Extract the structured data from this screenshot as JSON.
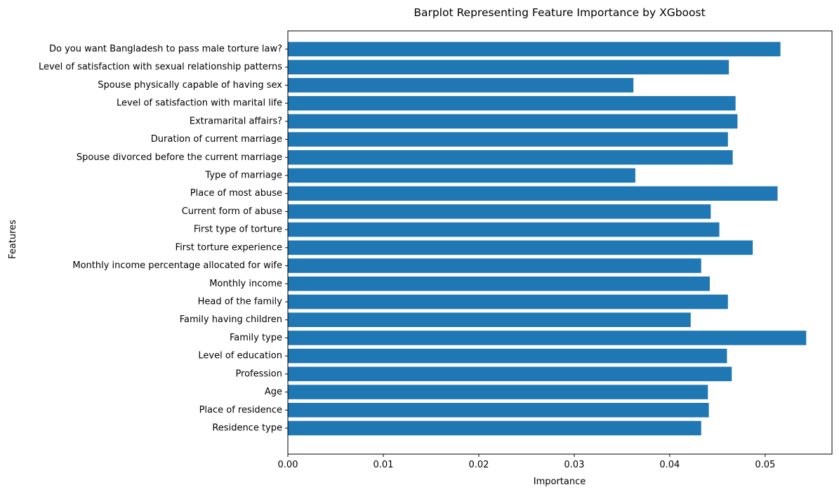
{
  "chart_data": {
    "type": "bar",
    "orientation": "horizontal",
    "title": "Barplot Representing Feature Importance by XGboost",
    "xlabel": "Importance",
    "ylabel": "Features",
    "xlim": [
      0,
      0.057
    ],
    "x_ticks": [
      "0.00",
      "0.01",
      "0.02",
      "0.03",
      "0.04",
      "0.05"
    ],
    "x_tick_values": [
      0,
      0.01,
      0.02,
      0.03,
      0.04,
      0.05
    ],
    "grid": false,
    "bar_color": "#1f77b4",
    "categories": [
      "Residence type",
      "Place of residence",
      "Age",
      "Profession",
      "Level of education",
      "Family type",
      "Family having children",
      "Head of the family",
      "Monthly income",
      "Monthly income percentage allocated for wife",
      "First torture experience",
      "First type of torture",
      "Current form of abuse",
      "Place of most abuse",
      "Type of marriage",
      "Spouse divorced before the current marriage",
      "Duration of current marriage",
      "Extramarital affairs?",
      "Level of satisfaction with marital life",
      "Spouse physically capable of having sex",
      "Level of satisfaction with sexual relationship patterns",
      "Do you want Bangladesh to pass male torture law?"
    ],
    "values": [
      0.0433,
      0.0441,
      0.044,
      0.0465,
      0.046,
      0.0543,
      0.0422,
      0.0461,
      0.0442,
      0.0433,
      0.0487,
      0.0452,
      0.0443,
      0.0513,
      0.0364,
      0.0466,
      0.0461,
      0.0471,
      0.0469,
      0.0362,
      0.0462,
      0.0516
    ]
  }
}
